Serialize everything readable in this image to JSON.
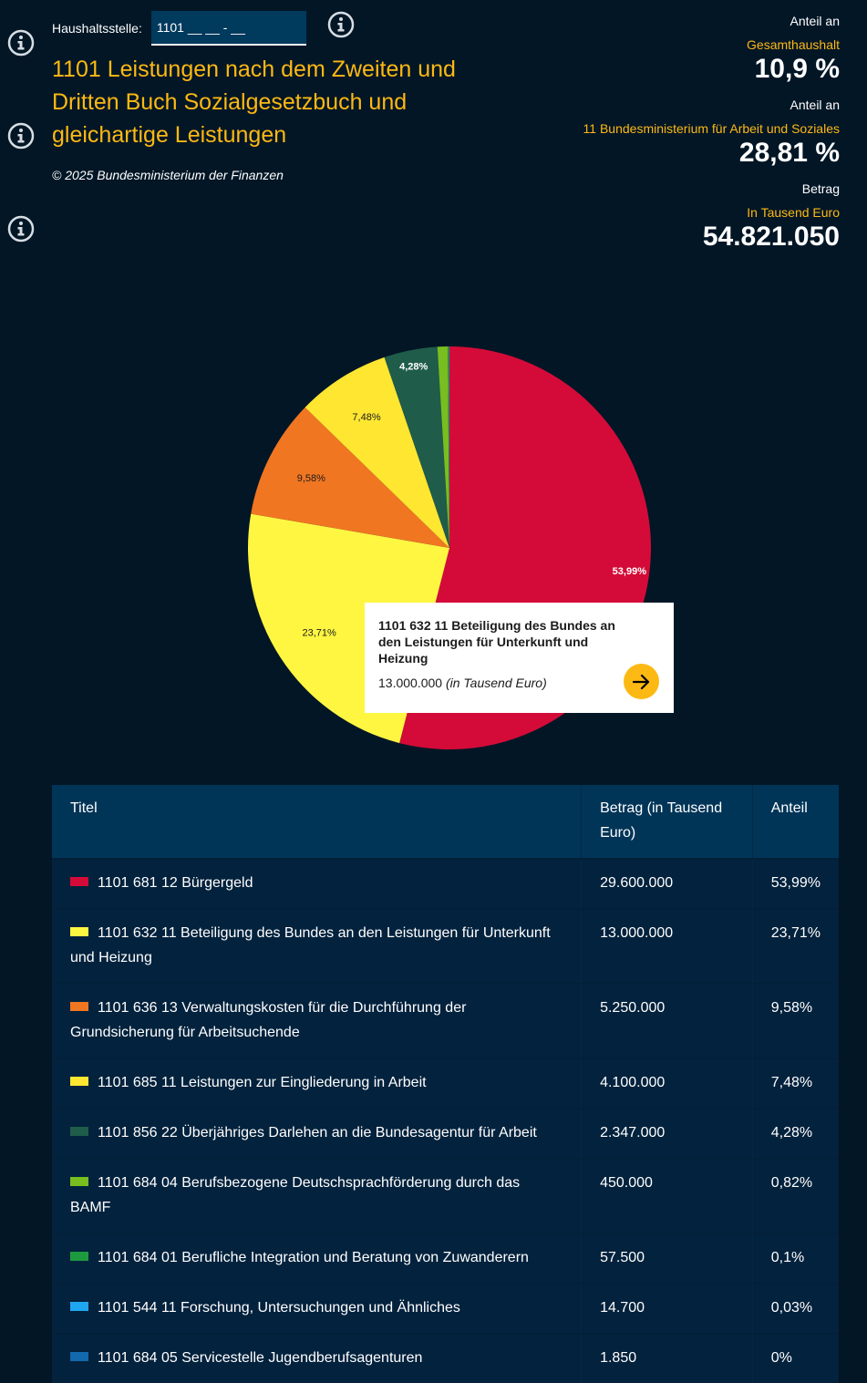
{
  "header": {
    "haushaltsstelle_label": "Haushaltsstelle:",
    "haushaltsstelle_value": "1101 __ __ - __",
    "title": "1101 Leistungen nach dem Zweiten und Dritten Buch Sozialgesetzbuch und gleichartige Leistungen",
    "copyright": "© 2025 Bundesministerium der Finanzen"
  },
  "stats": [
    {
      "label": "Anteil an",
      "sub": "Gesamthaushalt",
      "value": "10,9 %"
    },
    {
      "label": "Anteil an",
      "sub": "11 Bundesministerium für Arbeit und Soziales",
      "value": "28,81 %"
    },
    {
      "label": "Betrag",
      "sub": "In Tausend Euro",
      "value": "54.821.050"
    }
  ],
  "tooltip": {
    "title": "1101 632 11 Beteiligung des Bundes an den Leistungen für Unterkunft und Heizung",
    "value": "13.000.000",
    "unit": "(in Tausend Euro)"
  },
  "table": {
    "headers": [
      "Titel",
      "Betrag (in Tausend Euro)",
      "Anteil"
    ]
  },
  "chart_data": {
    "type": "pie",
    "title": "",
    "start_angle": "top, clockwise",
    "slices": [
      {
        "label": "1101 681 12 Bürgergeld",
        "value": 29600000,
        "betrag": "29.600.000",
        "percent": "53,99%",
        "color": "#d40b38",
        "label_color": "#ffffff",
        "show_label": true
      },
      {
        "label": "1101 632 11 Beteiligung des Bundes an den Leistungen für Unterkunft und Heizung",
        "value": 13000000,
        "betrag": "13.000.000",
        "percent": "23,71%",
        "color": "#fff642",
        "label_color": "#1c1c1c",
        "show_label": true
      },
      {
        "label": "1101 636 13 Verwaltungskosten für die Durchführung der Grundsicherung für Arbeitsuchende",
        "value": 5250000,
        "betrag": "5.250.000",
        "percent": "9,58%",
        "color": "#f07622",
        "label_color": "#1c1c1c",
        "show_label": true
      },
      {
        "label": "1101 685 11 Leistungen zur Eingliederung in Arbeit",
        "value": 4100000,
        "betrag": "4.100.000",
        "percent": "7,48%",
        "color": "#ffe631",
        "label_color": "#1c1c1c",
        "show_label": true
      },
      {
        "label": "1101 856 22 Überjähriges Darlehen an die Bundesagentur für Arbeit",
        "value": 2347000,
        "betrag": "2.347.000",
        "percent": "4,28%",
        "color": "#1f5c4a",
        "label_color": "#ffffff",
        "show_label": true
      },
      {
        "label": "1101 684 04 Berufsbezogene Deutschsprachförderung durch das BAMF",
        "value": 450000,
        "betrag": "450.000",
        "percent": "0,82%",
        "color": "#78be20",
        "label_color": "#ffffff",
        "show_label": false
      },
      {
        "label": "1101 684 01 Berufliche Integration und Beratung von Zuwanderern",
        "value": 57500,
        "betrag": "57.500",
        "percent": "0,1%",
        "color": "#1e9a3e",
        "label_color": "#ffffff",
        "show_label": false
      },
      {
        "label": "1101 544 11 Forschung, Untersuchungen und Ähnliches",
        "value": 14700,
        "betrag": "14.700",
        "percent": "0,03%",
        "color": "#1fa6f0",
        "label_color": "#ffffff",
        "show_label": false
      },
      {
        "label": "1101 684 05 Servicestelle Jugendberufsagenturen",
        "value": 1850,
        "betrag": "1.850",
        "percent": "0%",
        "color": "#1369ad",
        "label_color": "#ffffff",
        "show_label": false
      }
    ]
  }
}
